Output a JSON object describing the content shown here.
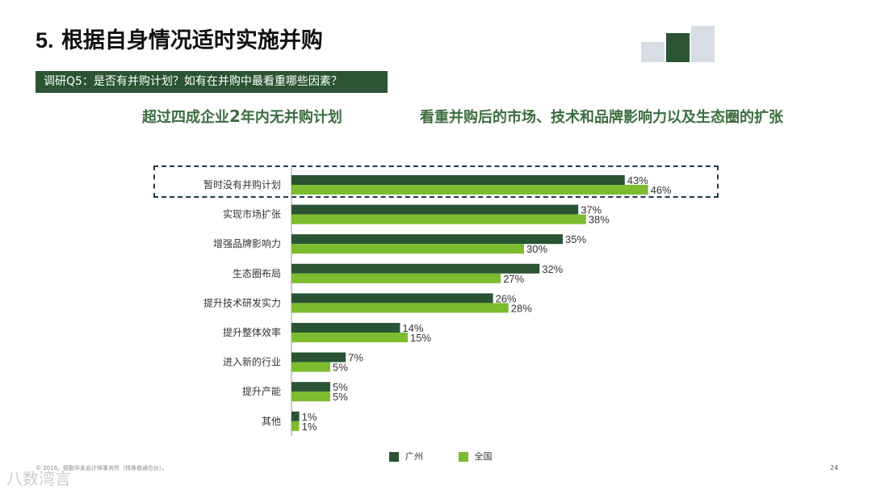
{
  "title": {
    "number": "5.",
    "text": "根据自身情况适时实施并购"
  },
  "question": "调研Q5：是否有并购计划？如有在并购中最看重哪些因素？",
  "headline_left": {
    "pre": "超过四成企业",
    "bold": "2",
    "post": "年内无并购计划"
  },
  "headline_right": "看重并购后的市场、技术和品牌影响力以及生态圈的扩张",
  "colors": {
    "guangzhou": "#2a5434",
    "national": "#7dbb2f",
    "banner": "#2a5434",
    "headline": "#3b6d3f"
  },
  "chart_data": {
    "type": "bar",
    "orientation": "horizontal",
    "categories": [
      "暂时没有并购计划",
      "实现市场扩张",
      "增强品牌影响力",
      "生态圈布局",
      "提升技术研发实力",
      "提升整体效率",
      "进入新的行业",
      "提升产能",
      "其他"
    ],
    "series": [
      {
        "name": "广州",
        "values": [
          43,
          37,
          35,
          32,
          26,
          14,
          7,
          5,
          1
        ]
      },
      {
        "name": "全国",
        "values": [
          46,
          38,
          30,
          27,
          28,
          15,
          5,
          5,
          1
        ]
      }
    ],
    "value_suffix": "%",
    "highlighted_category": "暂时没有并购计划"
  },
  "legend": {
    "guangzhou": "广州",
    "national": "全国"
  },
  "footer": "© 2018。德勤华永会计师事务所（特殊普通合伙）。",
  "page_number": "24",
  "watermark": "八数湾言"
}
